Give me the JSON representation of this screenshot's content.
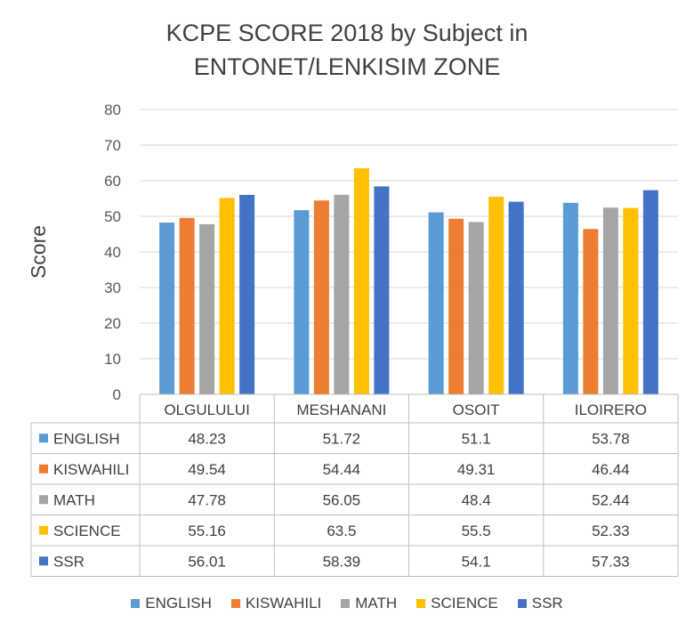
{
  "chart_data": {
    "type": "bar",
    "title_lines": [
      "KCPE SCORE 2018 by Subject in",
      "ENTONET/LENKISIM ZONE"
    ],
    "ylabel": "Score",
    "xlabel": "",
    "ylim": [
      0,
      80
    ],
    "yticks": [
      0,
      10,
      20,
      30,
      40,
      50,
      60,
      70,
      80
    ],
    "grid": true,
    "legend_position": "bottom",
    "categories": [
      "OLGULULUI",
      "MESHANANI",
      "OSOIT",
      "ILOIRERO"
    ],
    "series": [
      {
        "name": "ENGLISH",
        "color": "#5B9BD5",
        "values": [
          "48.23",
          "51.72",
          "51.1",
          "53.78"
        ]
      },
      {
        "name": "KISWAHILI",
        "color": "#ED7D31",
        "values": [
          "49.54",
          "54.44",
          "49.31",
          "46.44"
        ]
      },
      {
        "name": "MATH",
        "color": "#A5A5A5",
        "values": [
          "47.78",
          "56.05",
          "48.4",
          "52.44"
        ]
      },
      {
        "name": "SCIENCE",
        "color": "#FFC000",
        "values": [
          "55.16",
          "63.5",
          "55.5",
          "52.33"
        ]
      },
      {
        "name": "SSR",
        "color": "#4472C4",
        "values": [
          "56.01",
          "58.39",
          "54.1",
          "57.33"
        ]
      }
    ]
  }
}
